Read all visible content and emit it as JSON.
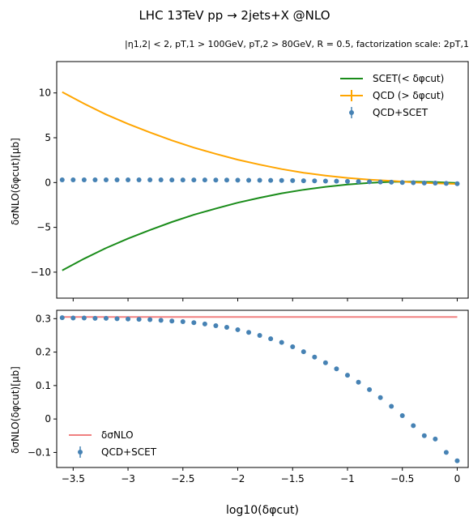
{
  "figure": {
    "title": "LHC 13TeV pp → 2jets+X @NLO",
    "subtitle": "|η1,2| < 2,  pT,1 > 100GeV,  pT,2 > 80GeV,  R = 0.5, factorization scale: 2pT,1",
    "xlabel": "log10(δφcut)"
  },
  "chart_data": [
    {
      "type": "line",
      "ylabel": "δσNLO(δφcut)[μb]",
      "xlim": [
        -3.65,
        0.1
      ],
      "ylim": [
        -12.9,
        13.5
      ],
      "xticks": [
        -3.5,
        -3.0,
        -2.5,
        -2.0,
        -1.5,
        -1.0,
        -0.5,
        0.0
      ],
      "yticks": [
        -10,
        -5,
        0,
        5,
        10
      ],
      "legend": "top-right",
      "series": [
        {
          "name": "SCET(< δφcut)",
          "color": "#1a8c1a",
          "style": "line",
          "x": [
            -3.6,
            -3.4,
            -3.2,
            -3.0,
            -2.8,
            -2.6,
            -2.4,
            -2.2,
            -2.0,
            -1.8,
            -1.6,
            -1.4,
            -1.2,
            -1.0,
            -0.8,
            -0.6,
            -0.4,
            -0.2,
            0.0
          ],
          "values": [
            -9.8,
            -8.5,
            -7.3,
            -6.25,
            -5.3,
            -4.4,
            -3.6,
            -2.9,
            -2.25,
            -1.7,
            -1.2,
            -0.8,
            -0.48,
            -0.22,
            -0.04,
            0.08,
            0.1,
            0.05,
            -0.05
          ]
        },
        {
          "name": "QCD (> δφcut)",
          "color": "#ffa500",
          "style": "line",
          "x": [
            -3.6,
            -3.4,
            -3.2,
            -3.0,
            -2.8,
            -2.6,
            -2.4,
            -2.2,
            -2.0,
            -1.8,
            -1.6,
            -1.4,
            -1.2,
            -1.0,
            -0.8,
            -0.6,
            -0.4,
            -0.2,
            0.0
          ],
          "values": [
            10.1,
            8.8,
            7.6,
            6.55,
            5.6,
            4.7,
            3.9,
            3.2,
            2.55,
            2.0,
            1.5,
            1.1,
            0.78,
            0.52,
            0.33,
            0.18,
            0.02,
            -0.08,
            -0.15
          ]
        },
        {
          "name": "QCD+SCET",
          "color": "#4682b4",
          "style": "points",
          "x": [
            -3.6,
            -3.5,
            -3.4,
            -3.3,
            -3.2,
            -3.1,
            -3.0,
            -2.9,
            -2.8,
            -2.7,
            -2.6,
            -2.5,
            -2.4,
            -2.3,
            -2.2,
            -2.1,
            -2.0,
            -1.9,
            -1.8,
            -1.7,
            -1.6,
            -1.5,
            -1.4,
            -1.3,
            -1.2,
            -1.1,
            -1.0,
            -0.9,
            -0.8,
            -0.7,
            -0.6,
            -0.5,
            -0.4,
            -0.3,
            -0.2,
            -0.1,
            0.0
          ],
          "values": [
            0.303,
            0.302,
            0.302,
            0.301,
            0.301,
            0.3,
            0.299,
            0.298,
            0.297,
            0.295,
            0.293,
            0.291,
            0.288,
            0.284,
            0.279,
            0.274,
            0.267,
            0.259,
            0.25,
            0.24,
            0.229,
            0.216,
            0.201,
            0.185,
            0.168,
            0.15,
            0.131,
            0.11,
            0.088,
            0.064,
            0.038,
            0.01,
            -0.02,
            -0.05,
            -0.06,
            -0.1,
            -0.125
          ]
        }
      ]
    },
    {
      "type": "line",
      "ylabel": "δσNLO(δφcut)[μb]",
      "xlim": [
        -3.65,
        0.1
      ],
      "ylim": [
        -0.145,
        0.325
      ],
      "xticks": [
        -3.5,
        -3.0,
        -2.5,
        -2.0,
        -1.5,
        -1.0,
        -0.5,
        0.0
      ],
      "yticks": [
        -0.1,
        0.0,
        0.1,
        0.2,
        0.3
      ],
      "legend": "bottom-left",
      "series": [
        {
          "name": "δσNLO",
          "color": "#f08080",
          "style": "line",
          "x": [
            -3.6,
            0.0
          ],
          "values": [
            0.305,
            0.305
          ]
        },
        {
          "name": "QCD+SCET",
          "color": "#4682b4",
          "style": "points",
          "x": [
            -3.6,
            -3.5,
            -3.4,
            -3.3,
            -3.2,
            -3.1,
            -3.0,
            -2.9,
            -2.8,
            -2.7,
            -2.6,
            -2.5,
            -2.4,
            -2.3,
            -2.2,
            -2.1,
            -2.0,
            -1.9,
            -1.8,
            -1.7,
            -1.6,
            -1.5,
            -1.4,
            -1.3,
            -1.2,
            -1.1,
            -1.0,
            -0.9,
            -0.8,
            -0.7,
            -0.6,
            -0.5,
            -0.4,
            -0.3,
            -0.2,
            -0.1,
            0.0
          ],
          "values": [
            0.303,
            0.302,
            0.302,
            0.301,
            0.301,
            0.3,
            0.299,
            0.298,
            0.297,
            0.295,
            0.293,
            0.291,
            0.288,
            0.284,
            0.279,
            0.274,
            0.267,
            0.259,
            0.25,
            0.24,
            0.229,
            0.216,
            0.201,
            0.185,
            0.168,
            0.15,
            0.131,
            0.11,
            0.088,
            0.064,
            0.038,
            0.01,
            -0.02,
            -0.05,
            -0.06,
            -0.1,
            -0.125
          ]
        }
      ]
    }
  ]
}
